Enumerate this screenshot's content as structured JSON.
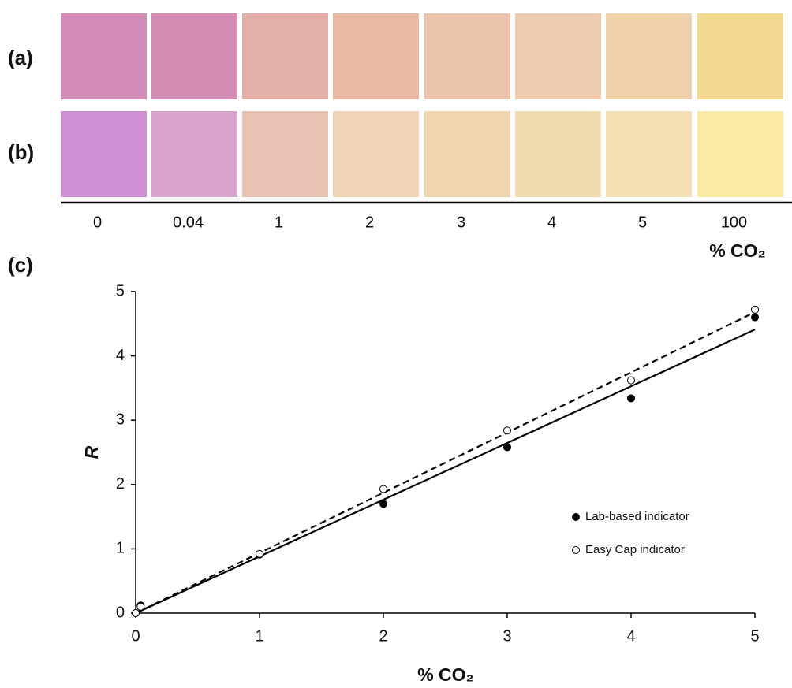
{
  "swatches": {
    "rows": [
      {
        "label": "(a)",
        "colors": [
          "#d48cb8",
          "#d48db5",
          "#e2b0a9",
          "#e8b9a4",
          "#ecc4ac",
          "#efcbb0",
          "#efd2ac",
          "#f3d98f"
        ]
      },
      {
        "label": "(b)",
        "colors": [
          "#cf8fd2",
          "#d9a5d0",
          "#e9c2b1",
          "#efd4b6",
          "#f0d6ae",
          "#f1dcb0",
          "#f4e0b4",
          "#faeaa6"
        ]
      }
    ],
    "concentrations": [
      "0",
      "0.04",
      "1",
      "2",
      "3",
      "4",
      "5",
      "100"
    ],
    "unit": "% CO₂"
  },
  "chart_data": {
    "type": "scatter",
    "panel_label": "(c)",
    "xlabel": "% CO₂",
    "ylabel": "R",
    "xlim": [
      0,
      5
    ],
    "ylim": [
      0,
      5
    ],
    "xticks": [
      0,
      1,
      2,
      3,
      4,
      5
    ],
    "yticks": [
      0,
      1,
      2,
      3,
      4,
      5
    ],
    "x": [
      0,
      0.04,
      1,
      2,
      3,
      4,
      5
    ],
    "series": [
      {
        "name": "Lab-based indicator",
        "color": "#000000",
        "marker": "filled",
        "line_style": "solid",
        "values": [
          0,
          0.12,
          0.91,
          1.7,
          2.58,
          3.34,
          4.6
        ],
        "trendline": {
          "x": [
            0,
            5
          ],
          "values": [
            0,
            4.41
          ]
        }
      },
      {
        "name": "Easy Cap indicator",
        "color": "#000000",
        "marker": "open",
        "line_style": "dashed",
        "values": [
          0,
          0.1,
          0.92,
          1.93,
          2.84,
          3.62,
          4.72
        ],
        "trendline": {
          "x": [
            0,
            5
          ],
          "values": [
            0,
            4.68
          ]
        }
      }
    ]
  }
}
